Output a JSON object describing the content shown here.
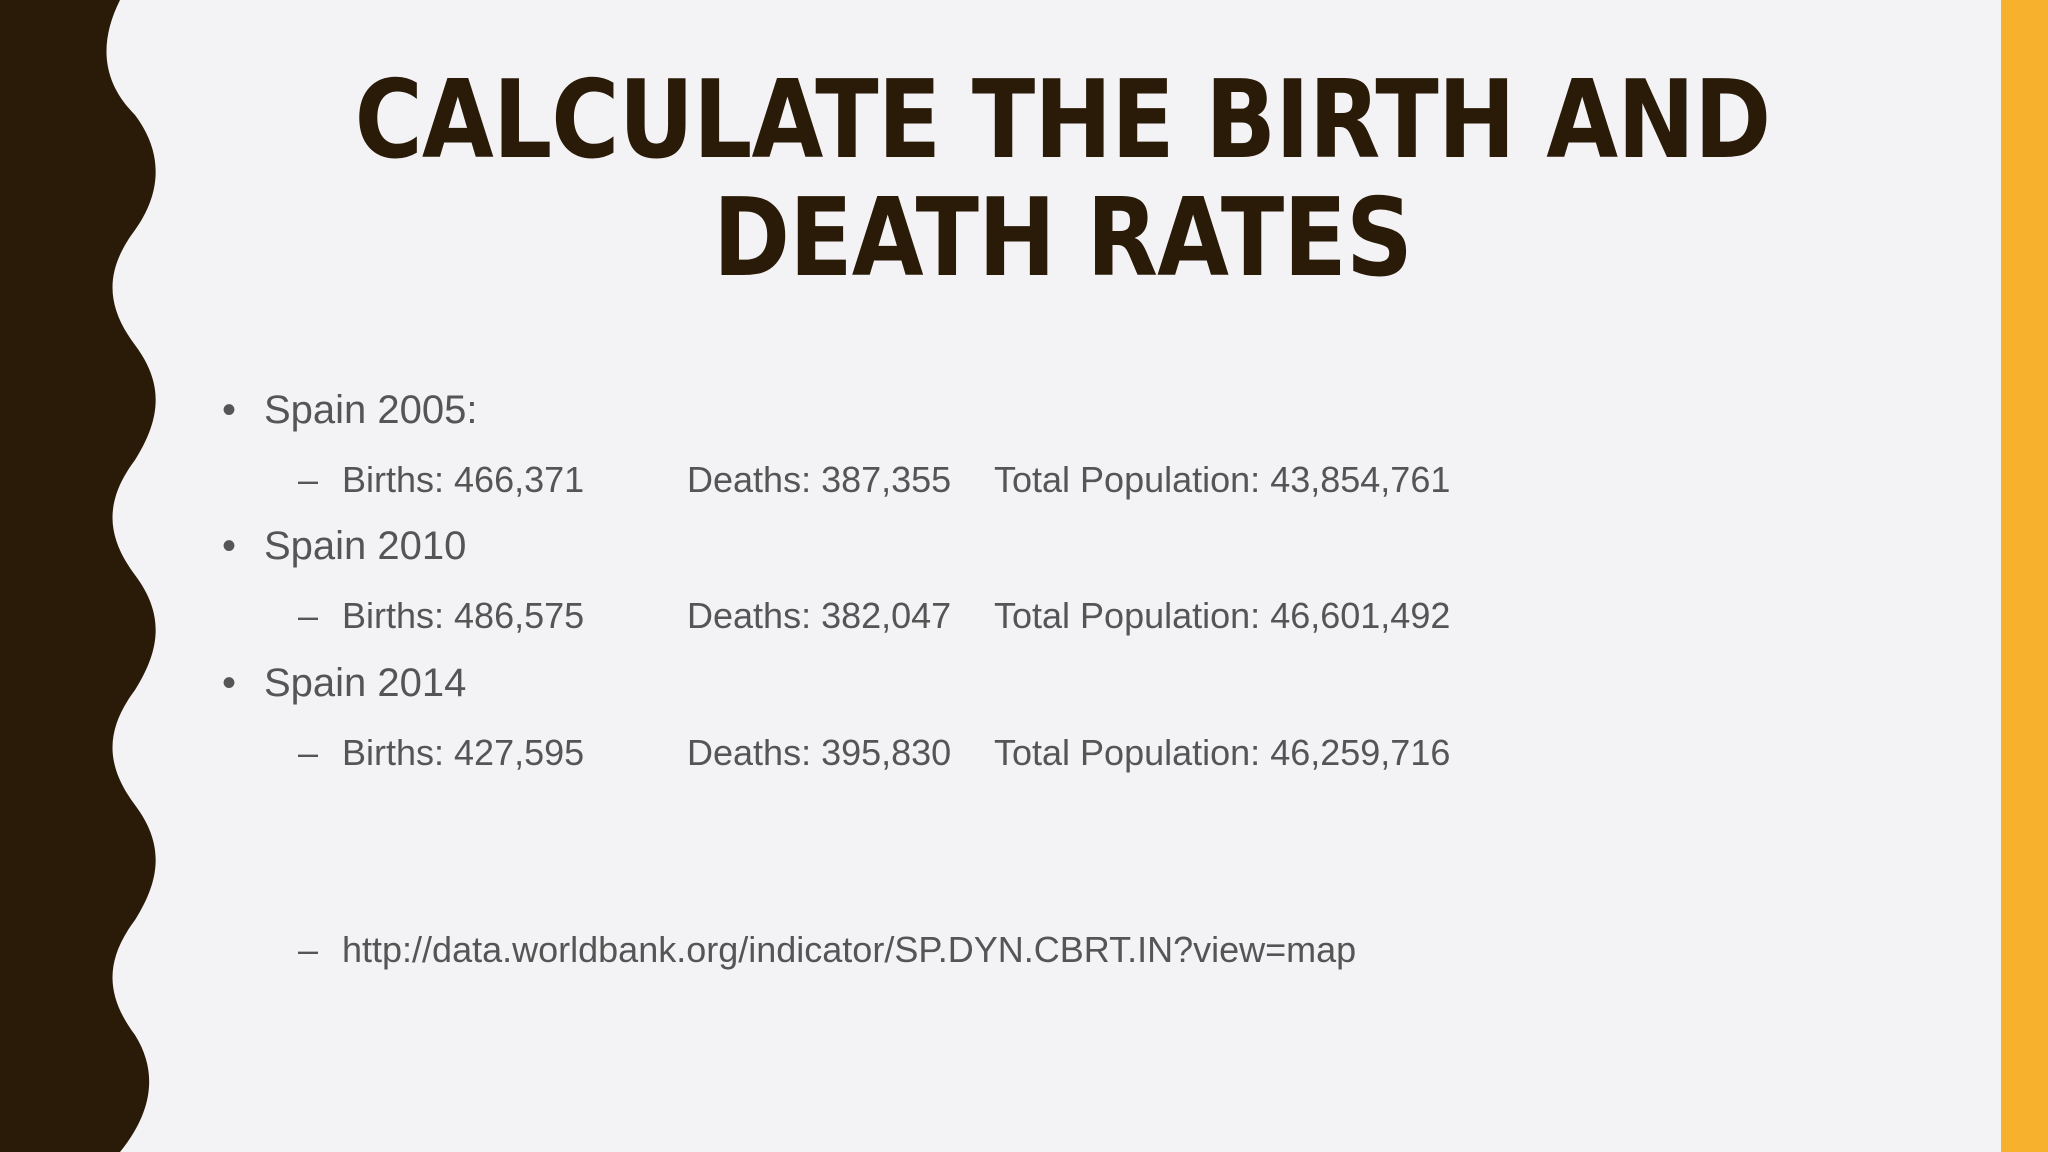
{
  "colors": {
    "background": "#f3f3f5",
    "wave": "#2a1a08",
    "accent": "#f7b12c",
    "title": "#2a1a08",
    "body_text": "#555555"
  },
  "title": "CALCULATE THE BIRTH AND DEATH RATES",
  "bullet_symbol": "•",
  "dash_symbol": "–",
  "sections": [
    {
      "heading": "Spain 2005:",
      "births": "Births: 466,371",
      "deaths": "Deaths: 387,355",
      "population": "Total Population: 43,854,761"
    },
    {
      "heading": "Spain 2010",
      "births": "Births: 486,575",
      "deaths": "Deaths: 382,047",
      "population": "Total Population: 46,601,492"
    },
    {
      "heading": "Spain 2014",
      "births": "Births: 427,595",
      "deaths": "Deaths: 395,830",
      "population": "Total Population: 46,259,716"
    }
  ],
  "source_link": "http://data.worldbank.org/indicator/SP.DYN.CBRT.IN?view=map"
}
